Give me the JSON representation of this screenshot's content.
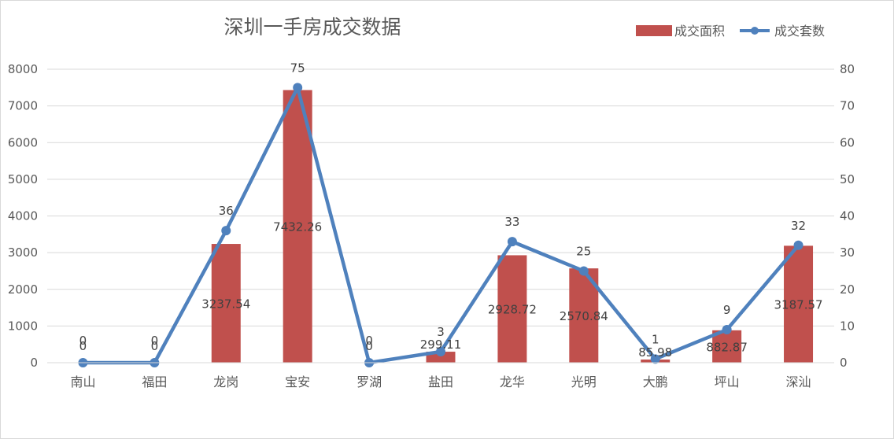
{
  "chart_data": {
    "type": "bar",
    "title": "深圳一手房成交数据",
    "categories": [
      "南山",
      "福田",
      "龙岗",
      "宝安",
      "罗湖",
      "盐田",
      "龙华",
      "光明",
      "大鹏",
      "坪山",
      "深汕"
    ],
    "series": [
      {
        "name": "成交面积",
        "type": "bar",
        "axis": "left",
        "color": "#c0504d",
        "values": [
          0,
          0,
          3237.54,
          7432.26,
          0,
          299.11,
          2928.72,
          2570.84,
          85.98,
          882.87,
          3187.57
        ],
        "labels": [
          "0",
          "0",
          "3237.54",
          "7432.26",
          "0",
          "299.11",
          "2928.72",
          "2570.84",
          "85.98",
          "882.87",
          "3187.57"
        ]
      },
      {
        "name": "成交套数",
        "type": "line",
        "axis": "right",
        "color": "#4f81bd",
        "values": [
          0,
          0,
          36,
          75,
          0,
          3,
          33,
          25,
          1,
          9,
          32
        ],
        "labels": [
          "0",
          "0",
          "36",
          "75",
          "0",
          "3",
          "33",
          "25",
          "1",
          "9",
          "32"
        ]
      }
    ],
    "y_left": {
      "min": 0,
      "max": 8000,
      "ticks": [
        "0",
        "1000",
        "2000",
        "3000",
        "4000",
        "5000",
        "6000",
        "7000",
        "8000"
      ]
    },
    "y_right": {
      "min": 0,
      "max": 80,
      "ticks": [
        "0",
        "10",
        "20",
        "30",
        "40",
        "50",
        "60",
        "70",
        "80"
      ]
    },
    "grid": true,
    "legend_position": "top-right"
  }
}
